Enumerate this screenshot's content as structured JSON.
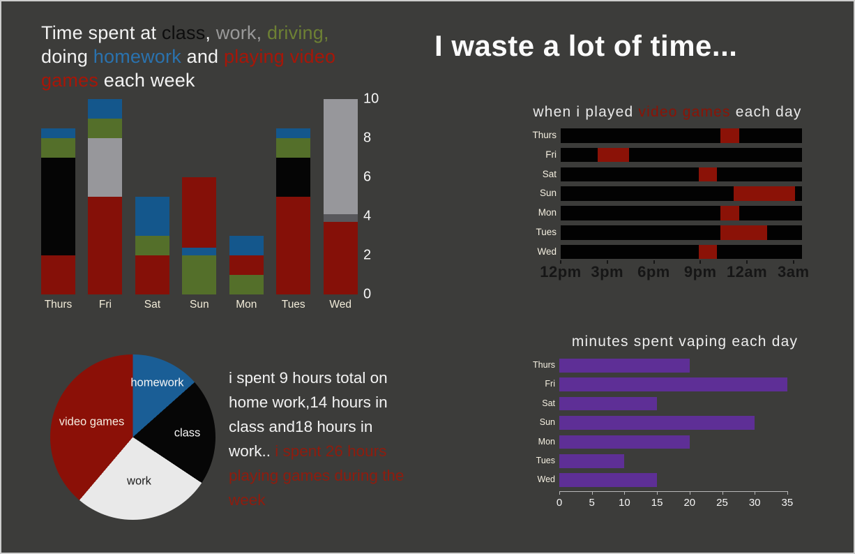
{
  "app": {
    "background": "#3c3c3a",
    "border_color": "#cdcdcd"
  },
  "left": {
    "title_segments": [
      {
        "text": "Time spent at ",
        "color": "#f2f2f2"
      },
      {
        "text": "class",
        "color": "#0d0d0d"
      },
      {
        "text": ", ",
        "color": "#f2f2f2"
      },
      {
        "text": "work,",
        "color": "#999999"
      },
      {
        "text": " ",
        "color": "#f2f2f2"
      },
      {
        "text": "driving,",
        "color": "#6d8034"
      },
      {
        "text": " doing ",
        "color": "#f2f2f2"
      },
      {
        "text": "homework",
        "color": "#2a72ae"
      },
      {
        "text": " and ",
        "color": "#f2f2f2"
      },
      {
        "text": "playing video games",
        "color": "#a71608"
      },
      {
        "text": " each week",
        "color": "#f2f2f2"
      }
    ],
    "narrative_segments": [
      {
        "text": "i spent 9 hours total on home work,14 hours in class and18 hours in work.. ",
        "color": "#f2f2f2"
      },
      {
        "text": "i spent 26 hours playing games during the week",
        "color": "#8f1c0e"
      }
    ]
  },
  "right": {
    "main_title": "I waste a lot of time...",
    "gantt_title_segments": [
      {
        "text": "when i played ",
        "color": "#e9e9e9"
      },
      {
        "text": "video games",
        "color": "#8c1306"
      },
      {
        "text": " each day",
        "color": "#e9e9e9"
      }
    ]
  },
  "chart_data": [
    {
      "id": "time-spent-each-week",
      "type": "bar",
      "stacked": true,
      "title": "Time spent at class, work, driving, doing homework and playing video games each week",
      "categories": [
        "Thurs",
        "Fri",
        "Sat",
        "Sun",
        "Mon",
        "Tues",
        "Wed"
      ],
      "ylim": [
        0,
        10
      ],
      "yticks": [
        0,
        2,
        4,
        6,
        8,
        10
      ],
      "yticks_side": "right",
      "grid": false,
      "colors": {
        "video games": "#851008",
        "class": "#050505",
        "driving": "#546f2a",
        "homework": "#14578c",
        "work": "#97979b",
        "other": "#58585c"
      },
      "bars": [
        {
          "day": "Thurs",
          "segments": [
            {
              "name": "video games",
              "value": 2
            },
            {
              "name": "class",
              "value": 5
            },
            {
              "name": "driving",
              "value": 1
            },
            {
              "name": "homework",
              "value": 0.5
            }
          ]
        },
        {
          "day": "Fri",
          "segments": [
            {
              "name": "video games",
              "value": 5
            },
            {
              "name": "work",
              "value": 3
            },
            {
              "name": "driving",
              "value": 1
            },
            {
              "name": "homework",
              "value": 1
            }
          ]
        },
        {
          "day": "Sat",
          "segments": [
            {
              "name": "video games",
              "value": 2
            },
            {
              "name": "driving",
              "value": 1
            },
            {
              "name": "homework",
              "value": 2
            }
          ]
        },
        {
          "day": "Sun",
          "segments": [
            {
              "name": "driving",
              "value": 2
            },
            {
              "name": "homework",
              "value": 0.4
            },
            {
              "name": "video games",
              "value": 3.6
            }
          ]
        },
        {
          "day": "Mon",
          "segments": [
            {
              "name": "driving",
              "value": 1
            },
            {
              "name": "video games",
              "value": 1
            },
            {
              "name": "homework",
              "value": 1
            }
          ]
        },
        {
          "day": "Tues",
          "segments": [
            {
              "name": "video games",
              "value": 5
            },
            {
              "name": "class",
              "value": 2
            },
            {
              "name": "driving",
              "value": 1
            },
            {
              "name": "homework",
              "value": 0.5
            }
          ]
        },
        {
          "day": "Wed",
          "segments": [
            {
              "name": "video games",
              "value": 3.7
            },
            {
              "name": "other",
              "value": 0.4
            },
            {
              "name": "work",
              "value": 5.9
            }
          ]
        }
      ]
    },
    {
      "id": "when-i-played-video-games",
      "type": "bar",
      "subtype": "timeline",
      "title": "when i played video games each day",
      "axis": {
        "origin": "12pm",
        "ticks": [
          "12pm",
          "3pm",
          "6pm",
          "9pm",
          "12am",
          "3am"
        ],
        "tick_hours": [
          0,
          3,
          6,
          9,
          12,
          15
        ],
        "span_hours": 15.55
      },
      "track_color": "#020202",
      "segment_color": "#8b1207",
      "rows": [
        {
          "day": "Thurs",
          "play_start_h": 10.3,
          "play_end_h": 11.5
        },
        {
          "day": "Fri",
          "play_start_h": 2.4,
          "play_end_h": 4.4
        },
        {
          "day": "Sat",
          "play_start_h": 8.9,
          "play_end_h": 10.05
        },
        {
          "day": "Sun",
          "play_start_h": 11.15,
          "play_end_h": 15.1
        },
        {
          "day": "Mon",
          "play_start_h": 10.3,
          "play_end_h": 11.5
        },
        {
          "day": "Tues",
          "play_start_h": 10.3,
          "play_end_h": 13.3
        },
        {
          "day": "Wed",
          "play_start_h": 8.9,
          "play_end_h": 10.05
        }
      ]
    },
    {
      "id": "weekly-hours-pie",
      "type": "pie",
      "start_angle_deg": 0,
      "direction": "clockwise",
      "slices": [
        {
          "label": "homework",
          "hours": 9,
          "color": "#1a5e96",
          "label_color": "#f6f6f6"
        },
        {
          "label": "class",
          "hours": 14,
          "color": "#060606",
          "label_color": "#f6f6f6"
        },
        {
          "label": "work",
          "hours": 18,
          "color": "#e9e9e9",
          "label_color": "#1c1c1c"
        },
        {
          "label": "video games",
          "hours": 26,
          "color": "#8b1007",
          "label_color": "#f5ece0"
        }
      ]
    },
    {
      "id": "minutes-vaping",
      "type": "bar",
      "orientation": "horizontal",
      "title": "minutes spent vaping each day",
      "categories": [
        "Thurs",
        "Fri",
        "Sat",
        "Sun",
        "Mon",
        "Tues",
        "Wed"
      ],
      "values": [
        20,
        35,
        15,
        30,
        20,
        10,
        15
      ],
      "xlim": [
        0,
        35
      ],
      "xticks": [
        0,
        5,
        10,
        15,
        20,
        25,
        30,
        35
      ],
      "bar_color": "#5e2f96",
      "grid": false
    }
  ]
}
